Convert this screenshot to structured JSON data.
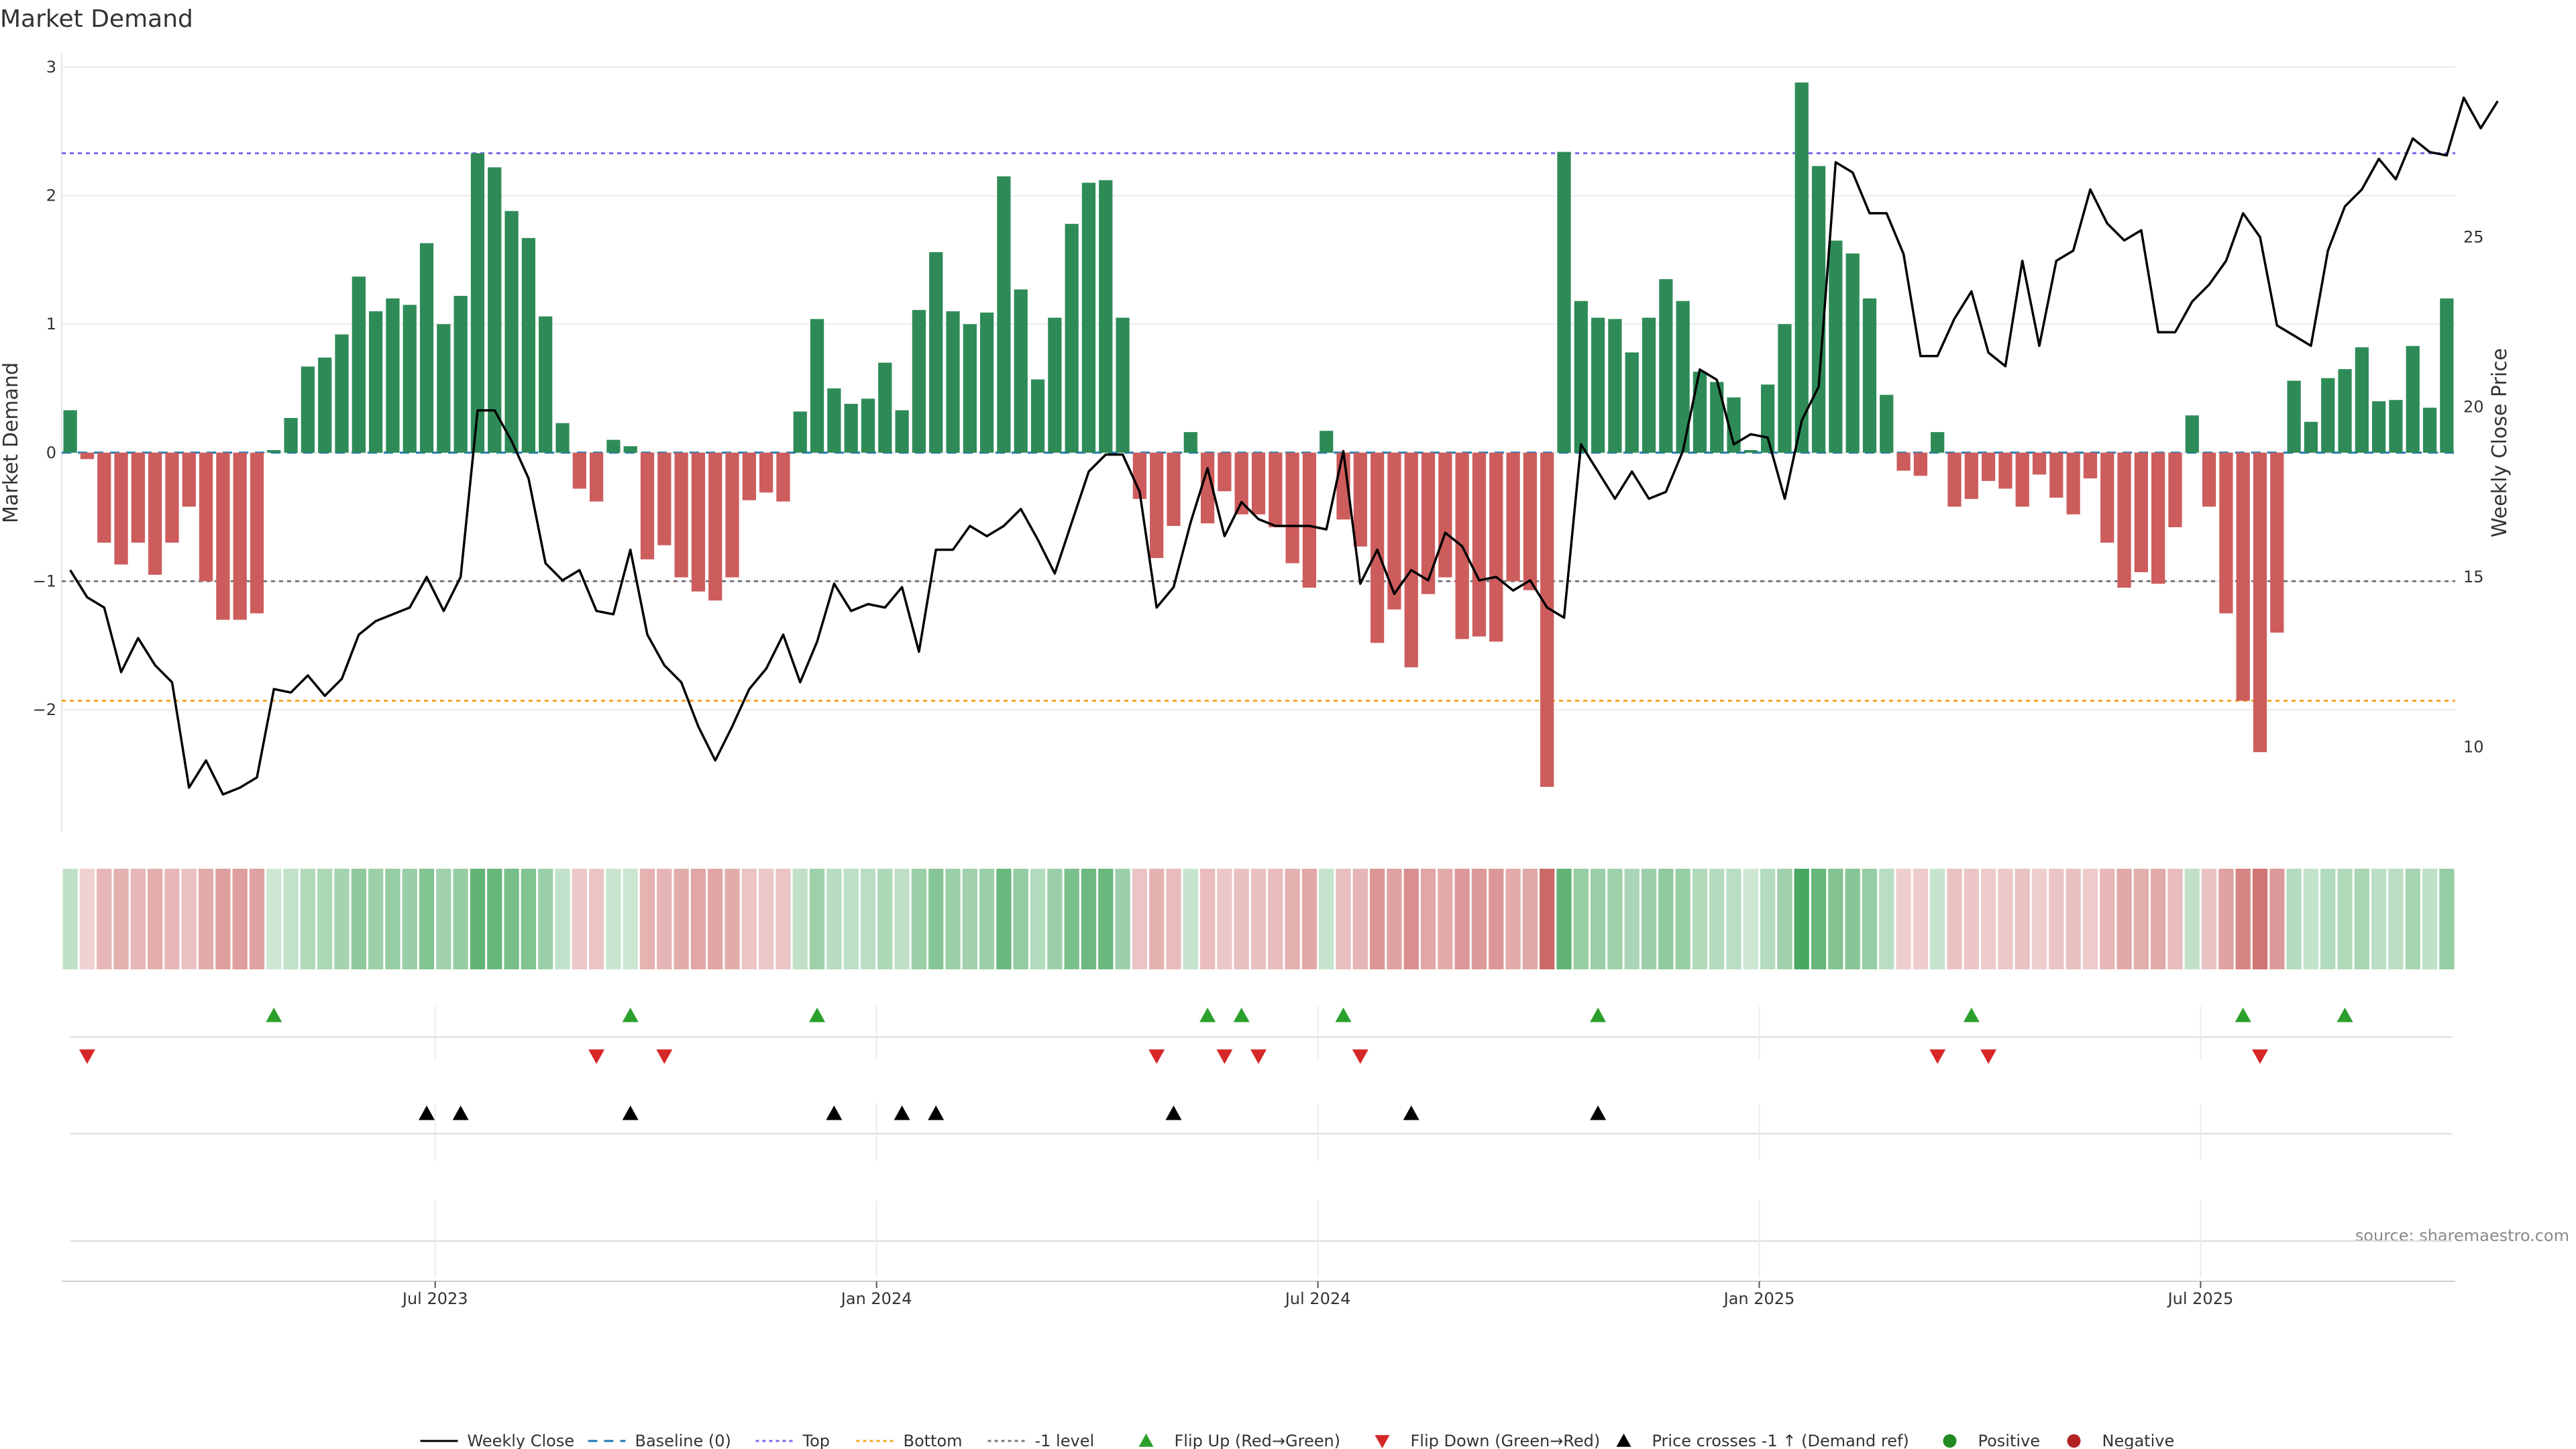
{
  "chart_data": {
    "type": "bar",
    "title": "Market Demand",
    "ylabel": "Market Demand",
    "y2label": "Weekly Close Price",
    "source": "source: sharemaestro.com",
    "ylim": [
      -2.95,
      3.0
    ],
    "y2lim": [
      7.5,
      30.0
    ],
    "yticks": [
      {
        "v": 3,
        "label": "3"
      },
      {
        "v": 2,
        "label": "2"
      },
      {
        "v": 1,
        "label": "1"
      },
      {
        "v": 0,
        "label": "0"
      },
      {
        "v": -1,
        "label": "−1"
      },
      {
        "v": -2,
        "label": "−2"
      }
    ],
    "y2ticks": [
      {
        "v": 25,
        "label": "25"
      },
      {
        "v": 20,
        "label": "20"
      },
      {
        "v": 15,
        "label": "15"
      },
      {
        "v": 10,
        "label": "10"
      }
    ],
    "xticks": [
      {
        "i": 22,
        "label": "Jul 2023"
      },
      {
        "i": 48,
        "label": "Jan 2024"
      },
      {
        "i": 74,
        "label": "Jul 2024"
      },
      {
        "i": 100,
        "label": "Jan 2025"
      },
      {
        "i": 126,
        "label": "Jul 2025"
      }
    ],
    "levels": {
      "top": 2.33,
      "minus_one": -1.0,
      "bottom": -1.93,
      "baseline": 0
    },
    "colors": {
      "positive": "#2e8b57",
      "negative": "#cd5c5c",
      "price": "#000000",
      "top": "#7b68ee",
      "bottom": "#f5a623",
      "minus_one": "#777777",
      "baseline": "#1f77b4",
      "flip_up": "#2ca02c",
      "flip_down": "#d62728",
      "cross": "#000000",
      "pos_dot": "#228b22",
      "neg_dot": "#b22222"
    },
    "series": [
      {
        "name": "Market Demand",
        "values": [
          0.33,
          -0.05,
          -0.7,
          -0.87,
          -0.7,
          -0.95,
          -0.7,
          -0.42,
          -1.0,
          -1.3,
          -1.3,
          -1.25,
          0.02,
          0.27,
          0.67,
          0.74,
          0.92,
          1.37,
          1.1,
          1.2,
          1.15,
          1.63,
          1.0,
          1.22,
          2.33,
          2.22,
          1.88,
          1.67,
          1.06,
          0.23,
          -0.28,
          -0.38,
          0.1,
          0.05,
          -0.83,
          -0.72,
          -0.97,
          -1.08,
          -1.15,
          -0.97,
          -0.37,
          -0.31,
          -0.38,
          0.32,
          1.04,
          0.5,
          0.38,
          0.42,
          0.7,
          0.33,
          1.11,
          1.56,
          1.1,
          1.0,
          1.09,
          2.15,
          1.27,
          0.57,
          1.05,
          1.78,
          2.1,
          2.12,
          1.05,
          -0.36,
          -0.82,
          -0.57,
          0.16,
          -0.55,
          -0.3,
          -0.48,
          -0.48,
          -0.58,
          -0.86,
          -1.05,
          0.17,
          -0.52,
          -0.73,
          -1.48,
          -1.22,
          -1.67,
          -1.1,
          -0.97,
          -1.45,
          -1.43,
          -1.47,
          -1.0,
          -1.07,
          -2.6,
          2.34,
          1.18,
          1.05,
          1.04,
          0.78,
          1.05,
          1.35,
          1.18,
          0.63,
          0.55,
          0.43,
          0.02,
          0.53,
          1.0,
          2.88,
          2.23,
          1.65,
          1.55,
          1.2,
          0.45,
          -0.14,
          -0.18,
          0.16,
          -0.42,
          -0.36,
          -0.22,
          -0.28,
          -0.42,
          -0.17,
          -0.35,
          -0.48,
          -0.2,
          -0.7,
          -1.05,
          -0.93,
          -1.02,
          -0.58,
          0.29,
          -0.42,
          -1.25,
          -1.93,
          -2.33,
          -1.4,
          0.56,
          0.24,
          0.58,
          0.65,
          0.82,
          0.4,
          0.41,
          0.83,
          0.35,
          1.2
        ]
      },
      {
        "name": "Weekly Close",
        "axis": "right",
        "values": [
          15.2,
          14.4,
          14.1,
          12.2,
          13.2,
          12.4,
          11.9,
          8.8,
          9.6,
          8.6,
          8.8,
          9.1,
          11.7,
          11.6,
          12.1,
          11.5,
          12.0,
          13.3,
          13.7,
          13.9,
          14.1,
          15.0,
          14.0,
          15.0,
          19.9,
          19.9,
          19.0,
          17.9,
          15.4,
          14.9,
          15.2,
          14.0,
          13.9,
          15.8,
          13.3,
          12.4,
          11.9,
          10.6,
          9.6,
          10.6,
          11.7,
          12.3,
          13.3,
          11.9,
          13.1,
          14.8,
          14.0,
          14.2,
          14.1,
          14.7,
          12.8,
          15.8,
          15.8,
          16.5,
          16.2,
          16.5,
          17.0,
          16.1,
          15.1,
          16.6,
          18.1,
          18.6,
          18.6,
          17.5,
          14.1,
          14.7,
          16.6,
          18.2,
          16.2,
          17.2,
          16.7,
          16.5,
          16.5,
          16.5,
          16.4,
          18.7,
          14.8,
          15.8,
          14.5,
          15.2,
          14.9,
          16.3,
          15.9,
          14.9,
          15.0,
          14.6,
          14.9,
          14.1,
          13.8,
          18.9,
          18.1,
          17.3,
          18.1,
          17.3,
          17.5,
          18.7,
          21.1,
          20.8,
          18.9,
          19.2,
          19.1,
          17.3,
          19.6,
          20.6,
          27.2,
          26.9,
          25.7,
          25.7,
          24.5,
          21.5,
          21.5,
          22.6,
          23.4,
          21.6,
          21.2,
          24.3,
          21.8,
          24.3,
          24.6,
          26.4,
          25.4,
          24.9,
          25.2,
          22.2,
          22.2,
          23.1,
          23.6,
          24.3,
          25.7,
          25.0,
          22.4,
          22.1,
          21.8,
          24.6,
          25.9,
          26.4,
          27.3,
          26.7,
          27.9,
          27.5,
          27.4,
          29.1,
          28.2,
          29.0
        ]
      }
    ],
    "flip_up_idx": [
      12,
      33,
      44,
      67,
      69,
      75,
      90,
      112,
      128,
      134
    ],
    "flip_down_idx": [
      1,
      31,
      35,
      64,
      68,
      70,
      76,
      110,
      113,
      129
    ],
    "cross_idx": [
      21,
      23,
      33,
      45,
      49,
      51,
      65,
      79,
      90
    ],
    "legend": [
      {
        "kind": "line",
        "label": "Weekly Close"
      },
      {
        "kind": "dash",
        "label": "Baseline (0)"
      },
      {
        "kind": "dot-top",
        "label": "Top"
      },
      {
        "kind": "dot-bottom",
        "label": "Bottom"
      },
      {
        "kind": "dot-minus",
        "label": "-1 level"
      },
      {
        "kind": "tri-up-green",
        "label": "Flip Up (Red→Green)"
      },
      {
        "kind": "tri-down-red",
        "label": "Flip Down (Green→Red)"
      },
      {
        "kind": "tri-up-black",
        "label": "Price crosses -1 ↑ (Demand ref)"
      },
      {
        "kind": "dot-green",
        "label": "Positive"
      },
      {
        "kind": "dot-red",
        "label": "Negative"
      }
    ]
  }
}
